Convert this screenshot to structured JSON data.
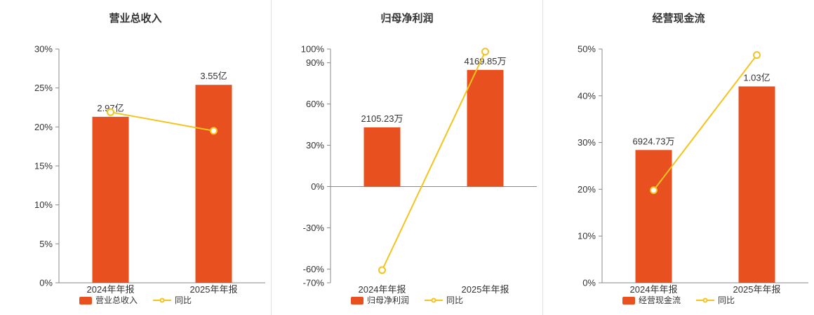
{
  "colors": {
    "bar": "#e8501f",
    "line": "#f3c41d",
    "axis": "#888888",
    "text": "#333333",
    "divider": "#e0e0e0",
    "background": "#ffffff"
  },
  "chart_data": [
    {
      "type": "bar",
      "overlay": "line",
      "title": "营业总收入",
      "categories": [
        "2024年年报",
        "2025年年报"
      ],
      "bar_series": {
        "name": "营业总收入",
        "labels": [
          "2.97亿",
          "3.55亿"
        ],
        "values_pct": [
          21.3,
          25.4
        ]
      },
      "line_series": {
        "name": "同比",
        "values_pct": [
          21.9,
          19.5
        ]
      },
      "ylim": [
        0,
        30
      ],
      "yticks": [
        0,
        5,
        10,
        15,
        20,
        25,
        30
      ],
      "ytick_labels": [
        "0%",
        "5%",
        "10%",
        "15%",
        "20%",
        "25%",
        "30%"
      ],
      "legend_position": "bottom",
      "grid": false
    },
    {
      "type": "bar",
      "overlay": "line",
      "title": "归母净利润",
      "categories": [
        "2024年年报",
        "2025年年报"
      ],
      "bar_series": {
        "name": "归母净利润",
        "labels": [
          "2105.23万",
          "4169.85万"
        ],
        "values_pct": [
          43.0,
          84.8
        ]
      },
      "line_series": {
        "name": "同比",
        "values_pct": [
          -60.8,
          98.1
        ]
      },
      "ylim": [
        -70,
        100
      ],
      "yticks": [
        -70,
        -60,
        -30,
        0,
        30,
        60,
        90,
        100
      ],
      "ytick_labels": [
        "-70%",
        "-60%",
        "-30%",
        "0%",
        "30%",
        "60%",
        "90%",
        "100%"
      ],
      "legend_position": "bottom",
      "grid": false
    },
    {
      "type": "bar",
      "overlay": "line",
      "title": "经营现金流",
      "categories": [
        "2024年年报",
        "2025年年报"
      ],
      "bar_series": {
        "name": "经营现金流",
        "labels": [
          "6924.73万",
          "1.03亿"
        ],
        "values_pct": [
          28.4,
          42.0
        ]
      },
      "line_series": {
        "name": "同比",
        "values_pct": [
          19.8,
          48.7
        ]
      },
      "ylim": [
        0,
        50
      ],
      "yticks": [
        0,
        10,
        20,
        30,
        40,
        50
      ],
      "ytick_labels": [
        "0%",
        "10%",
        "20%",
        "30%",
        "40%",
        "50%"
      ],
      "legend_position": "bottom",
      "grid": false
    }
  ]
}
